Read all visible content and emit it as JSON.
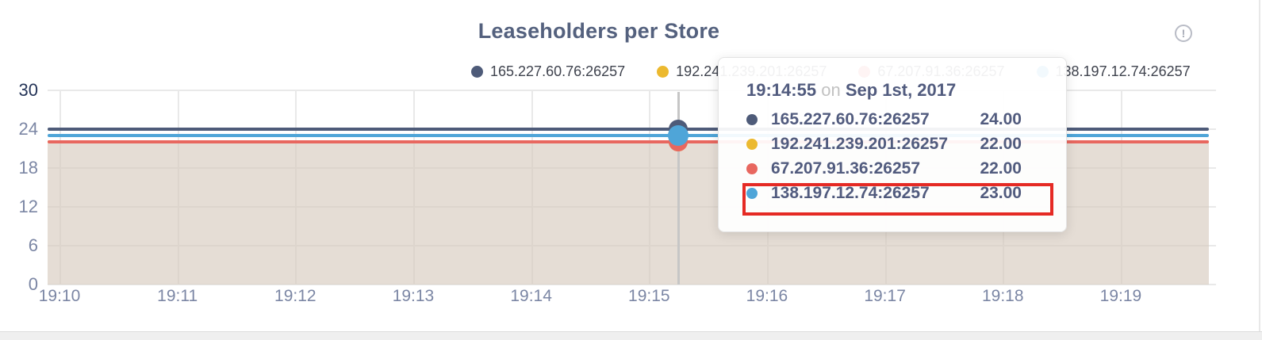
{
  "page": {
    "title": "Leaseholders per Store",
    "info_icon_glyph": "!"
  },
  "tooltip": {
    "time": "19:14:55",
    "conjunction": "on",
    "date": "Sep 1st, 2017",
    "rows": [
      {
        "name": "165.227.60.76:26257",
        "value": "24.00",
        "color": "#4e5b79",
        "highlighted": false
      },
      {
        "name": "192.241.239.201:26257",
        "value": "22.00",
        "color": "#ecb92f",
        "highlighted": false
      },
      {
        "name": "67.207.91.36:26257",
        "value": "22.00",
        "color": "#e8675f",
        "highlighted": false
      },
      {
        "name": "138.197.12.74:26257",
        "value": "23.00",
        "color": "#4fa5d8",
        "highlighted": true
      }
    ],
    "highlight_color": "#e52a24"
  },
  "chart_data": {
    "type": "line",
    "title": "Leaseholders per Store",
    "x_ticks": [
      "19:10",
      "19:11",
      "19:12",
      "19:13",
      "19:14",
      "19:15",
      "19:16",
      "19:17",
      "19:18",
      "19:19"
    ],
    "y_ticks": [
      0,
      6,
      12,
      18,
      24,
      30
    ],
    "ylim": [
      0,
      30
    ],
    "xlabel": "",
    "ylabel": "",
    "grid": true,
    "legend_position": "top",
    "area_fill_color": "rgba(213,200,188,0.62)",
    "series": [
      {
        "name": "165.227.60.76:26257",
        "color": "#4e5b79",
        "value": 24,
        "note": "constant across 19:10-19:19"
      },
      {
        "name": "192.241.239.201:26257",
        "color": "#ecb92f",
        "value": 22,
        "note": "constant across 19:10-19:19"
      },
      {
        "name": "67.207.91.36:26257",
        "color": "#e8675f",
        "value": 22,
        "note": "constant across 19:10-19:19"
      },
      {
        "name": "138.197.12.74:26257",
        "color": "#4fa5d8",
        "value": 23,
        "note": "constant across 19:10-19:19"
      }
    ],
    "hover": {
      "time": "19:14:55",
      "date": "Sep 1st, 2017",
      "values": [
        24,
        22,
        22,
        23
      ]
    }
  }
}
